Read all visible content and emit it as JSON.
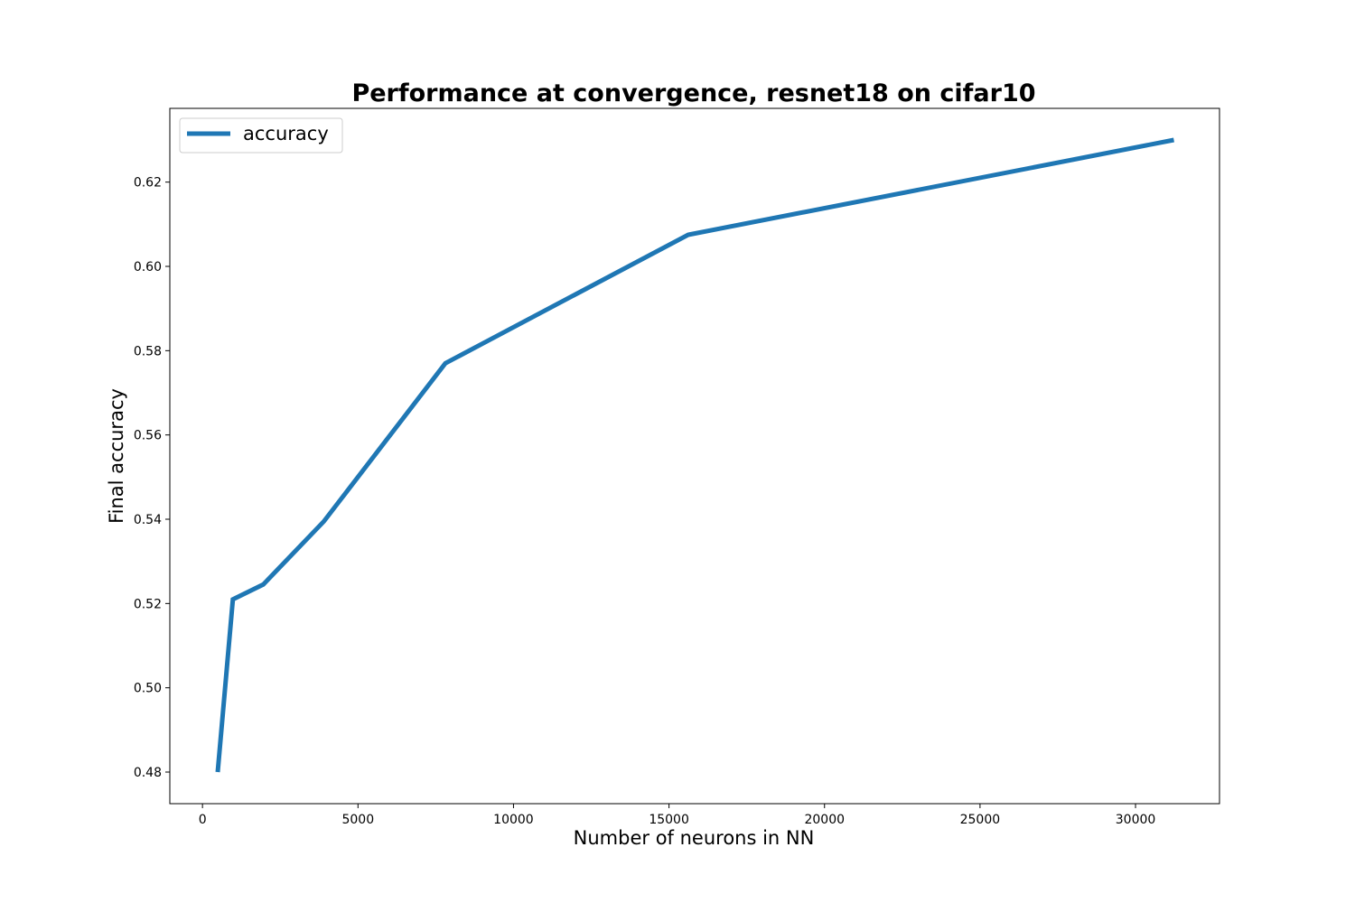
{
  "chart_data": {
    "type": "line",
    "title": "Performance at convergence, resnet18 on cifar10",
    "xlabel": "Number of neurons in NN",
    "ylabel": "Final accuracy",
    "xlim": [
      -1050,
      32700
    ],
    "ylim": [
      0.4725,
      0.6375
    ],
    "xticks": [
      0,
      5000,
      10000,
      15000,
      20000,
      25000,
      30000
    ],
    "xtick_labels": [
      "0",
      "5000",
      "10000",
      "15000",
      "20000",
      "25000",
      "30000"
    ],
    "yticks": [
      0.48,
      0.5,
      0.52,
      0.54,
      0.56,
      0.58,
      0.6,
      0.62
    ],
    "ytick_labels": [
      "0.48",
      "0.50",
      "0.52",
      "0.54",
      "0.56",
      "0.58",
      "0.60",
      "0.62"
    ],
    "grid": false,
    "legend_position": "top-left",
    "series": [
      {
        "name": "accuracy",
        "color": "#1f77b4",
        "x": [
          488,
          976,
          1952,
          3904,
          7808,
          15616,
          31232
        ],
        "y": [
          0.48,
          0.521,
          0.5245,
          0.5395,
          0.577,
          0.6075,
          0.63
        ]
      }
    ]
  }
}
